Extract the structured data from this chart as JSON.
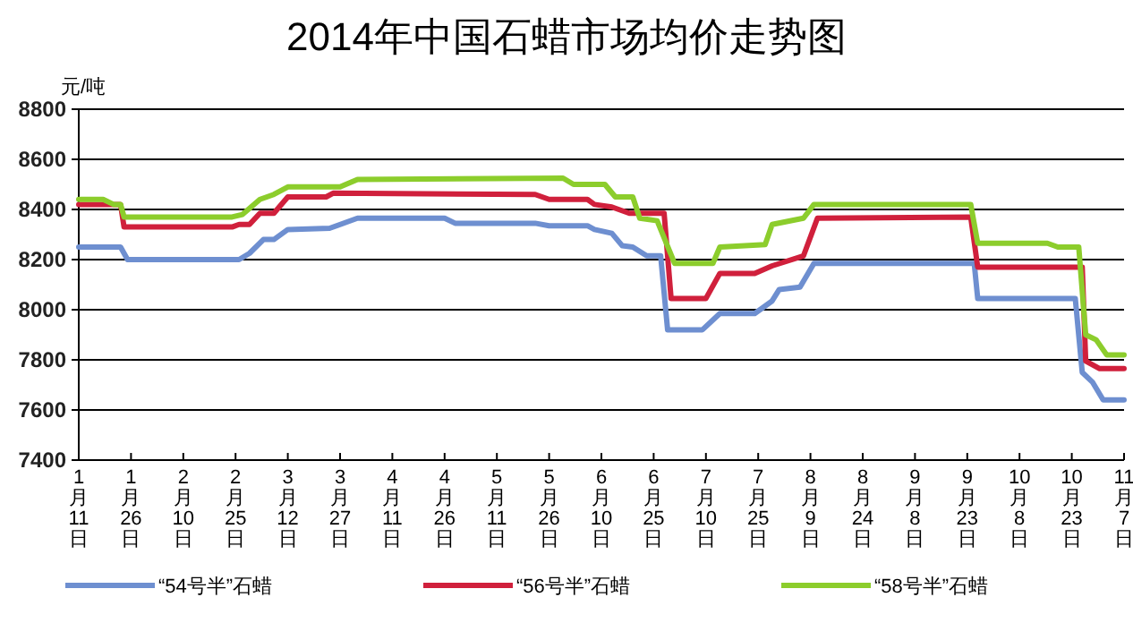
{
  "chart_data": {
    "type": "line",
    "title": "2014年中国石蜡市场均价走势图",
    "ylabel": "元/吨",
    "xlim": [
      "--01-11",
      "--11-07"
    ],
    "xticks": [
      {
        "value": "--01-11",
        "label": "1月11日"
      },
      {
        "value": "--01-26",
        "label": "1月26日"
      },
      {
        "value": "--02-10",
        "label": "2月10日"
      },
      {
        "value": "--02-25",
        "label": "2月25日"
      },
      {
        "value": "--03-12",
        "label": "3月12日"
      },
      {
        "value": "--03-27",
        "label": "3月27日"
      },
      {
        "value": "--04-11",
        "label": "4月11日"
      },
      {
        "value": "--04-26",
        "label": "4月26日"
      },
      {
        "value": "--05-11",
        "label": "5月11日"
      },
      {
        "value": "--05-26",
        "label": "5月26日"
      },
      {
        "value": "--06-10",
        "label": "6月10日"
      },
      {
        "value": "--06-25",
        "label": "6月25日"
      },
      {
        "value": "--07-10",
        "label": "7月10日"
      },
      {
        "value": "--07-25",
        "label": "7月25日"
      },
      {
        "value": "--08-09",
        "label": "8月9日"
      },
      {
        "value": "--08-24",
        "label": "8月24日"
      },
      {
        "value": "--09-08",
        "label": "9月8日"
      },
      {
        "value": "--09-23",
        "label": "9月23日"
      },
      {
        "value": "--10-08",
        "label": "10月8日"
      },
      {
        "value": "--10-23",
        "label": "10月23日"
      },
      {
        "value": "--11-07",
        "label": "11月7日"
      }
    ],
    "ylim": [
      7400,
      8800
    ],
    "yticks": [
      7400,
      7600,
      7800,
      8000,
      8200,
      8400,
      8600,
      8800
    ],
    "grid": "y",
    "legend": "bottom",
    "marker": "none",
    "line_style": "solid",
    "series": [
      {
        "name": "“54号半”石蜡",
        "color": "#6e8fd0",
        "x": [
          "--01-11",
          "--01-23",
          "--01-25",
          "--02-26",
          "--03-01",
          "--03-05",
          "--03-08",
          "--03-12",
          "--03-24",
          "--04-01",
          "--04-26",
          "--04-29",
          "--05-22",
          "--05-26",
          "--06-06",
          "--06-08",
          "--06-13",
          "--06-16",
          "--06-19",
          "--06-23",
          "--06-27",
          "--06-29",
          "--07-09",
          "--07-14",
          "--07-24",
          "--07-29",
          "--07-31",
          "--08-06",
          "--08-10",
          "--09-25",
          "--09-26",
          "--10-24",
          "--10-26",
          "--10-29",
          "--11-01",
          "--11-07"
        ],
        "values": [
          8250,
          8250,
          8200,
          8200,
          8225,
          8280,
          8280,
          8320,
          8325,
          8365,
          8365,
          8345,
          8345,
          8335,
          8335,
          8320,
          8305,
          8255,
          8250,
          8215,
          8215,
          7920,
          7920,
          7985,
          7985,
          8035,
          8080,
          8090,
          8185,
          8185,
          8045,
          8045,
          7750,
          7710,
          7640,
          7640
        ]
      },
      {
        "name": "“56号半”石蜡",
        "color": "#d0203c",
        "x": [
          "--01-11",
          "--01-23",
          "--01-24",
          "--02-24",
          "--02-26",
          "--03-01",
          "--03-04",
          "--03-08",
          "--03-12",
          "--03-23",
          "--03-25",
          "--05-22",
          "--05-26",
          "--06-06",
          "--06-08",
          "--06-13",
          "--06-18",
          "--06-28",
          "--06-30",
          "--07-10",
          "--07-14",
          "--07-24",
          "--07-29",
          "--08-07",
          "--08-11",
          "--09-24",
          "--09-26",
          "--10-26",
          "--10-27",
          "--10-31",
          "--11-07"
        ],
        "values": [
          8420,
          8420,
          8330,
          8330,
          8340,
          8340,
          8385,
          8385,
          8450,
          8450,
          8465,
          8460,
          8440,
          8440,
          8420,
          8410,
          8385,
          8385,
          8045,
          8045,
          8145,
          8145,
          8175,
          8215,
          8365,
          8370,
          8170,
          8170,
          7795,
          7765,
          7765
        ]
      },
      {
        "name": "“58号半”石蜡",
        "color": "#8ccd2c",
        "x": [
          "--01-11",
          "--01-18",
          "--01-21",
          "--01-23",
          "--01-24",
          "--02-24",
          "--02-27",
          "--03-04",
          "--03-08",
          "--03-12",
          "--03-27",
          "--04-01",
          "--05-30",
          "--06-02",
          "--06-11",
          "--06-14",
          "--06-19",
          "--06-21",
          "--06-26",
          "--07-01",
          "--07-12",
          "--07-14",
          "--07-27",
          "--07-29",
          "--08-07",
          "--08-10",
          "--09-24",
          "--09-26",
          "--10-16",
          "--10-19",
          "--10-25",
          "--10-27",
          "--10-30",
          "--11-02",
          "--11-07"
        ],
        "values": [
          8440,
          8440,
          8420,
          8420,
          8370,
          8370,
          8380,
          8440,
          8460,
          8490,
          8490,
          8520,
          8525,
          8500,
          8500,
          8450,
          8450,
          8365,
          8355,
          8185,
          8185,
          8250,
          8260,
          8340,
          8365,
          8420,
          8420,
          8265,
          8265,
          8250,
          8250,
          7900,
          7880,
          7820,
          7820
        ]
      }
    ]
  }
}
